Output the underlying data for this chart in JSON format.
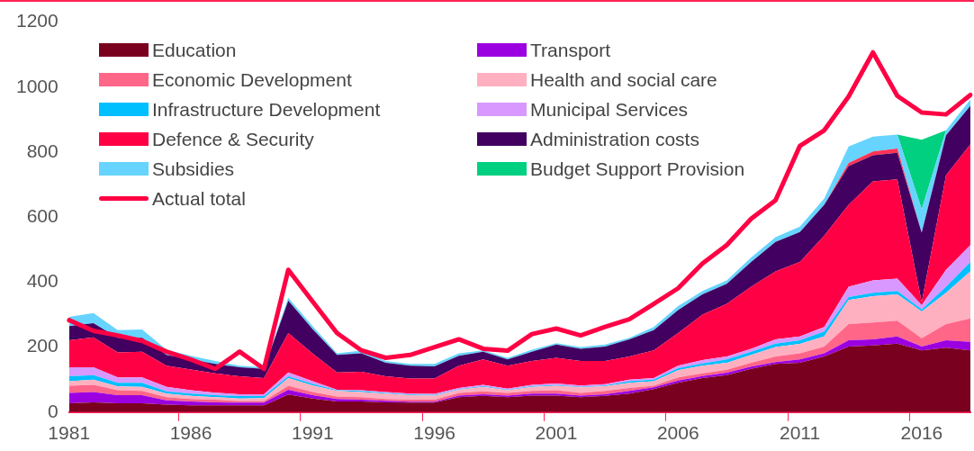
{
  "chart_data": {
    "type": "area",
    "stacked": true,
    "legend": "top left",
    "grid": false,
    "marker": "none",
    "categories": [
      "1981",
      null,
      null,
      null,
      null,
      "1986",
      null,
      null,
      null,
      null,
      "1991",
      null,
      null,
      null,
      null,
      "1996",
      null,
      null,
      null,
      null,
      "2001",
      null,
      null,
      null,
      null,
      "2006",
      null,
      null,
      null,
      null,
      "2011",
      null,
      null,
      null,
      null,
      "2016",
      null,
      null
    ],
    "ylim": [
      0,
      1200
    ],
    "yticks": [
      0,
      200,
      400,
      600,
      800,
      1000,
      1200
    ],
    "series": [
      {
        "name": "Education",
        "color": "#7a0020",
        "values": [
          27,
          30,
          27,
          27,
          23,
          21,
          21,
          21,
          21,
          54,
          42,
          33,
          33,
          30,
          29,
          29,
          46,
          50,
          46,
          51,
          51,
          46,
          50,
          57,
          71,
          90,
          105,
          114,
          133,
          148,
          152,
          171,
          202,
          205,
          211,
          190,
          198,
          190
        ]
      },
      {
        "name": "Transport",
        "color": "#9b00e0",
        "values": [
          32,
          32,
          25,
          25,
          13,
          12,
          9,
          8,
          8,
          15,
          10,
          7,
          5,
          5,
          3,
          3,
          5,
          5,
          5,
          6,
          6,
          5,
          5,
          8,
          5,
          7,
          6,
          7,
          7,
          6,
          10,
          10,
          19,
          19,
          22,
          12,
          23,
          26
        ]
      },
      {
        "name": "Economic Development",
        "color": "#ff6688",
        "values": [
          22,
          22,
          15,
          13,
          10,
          7,
          8,
          5,
          5,
          12,
          10,
          8,
          8,
          5,
          6,
          6,
          8,
          9,
          8,
          8,
          10,
          8,
          10,
          9,
          5,
          10,
          8,
          9,
          12,
          17,
          19,
          21,
          50,
          52,
          48,
          25,
          50,
          72
        ]
      },
      {
        "name": "Health and social care",
        "color": "#ffb0c0",
        "values": [
          14,
          16,
          12,
          13,
          11,
          10,
          8,
          8,
          9,
          24,
          20,
          17,
          16,
          17,
          14,
          13,
          10,
          14,
          8,
          13,
          14,
          17,
          15,
          16,
          14,
          22,
          24,
          22,
          24,
          29,
          29,
          31,
          74,
          81,
          81,
          83,
          96,
          145
        ]
      },
      {
        "name": "Infrastructure Development",
        "color": "#00bfff",
        "values": [
          15,
          14,
          11,
          12,
          7,
          7,
          6,
          7,
          6,
          5,
          5,
          2,
          3,
          2,
          2,
          2,
          1,
          2,
          2,
          2,
          2,
          2,
          2,
          5,
          5,
          6,
          7,
          10,
          10,
          11,
          11,
          15,
          9,
          10,
          11,
          6,
          19,
          29
        ]
      },
      {
        "name": "Municipal Services",
        "color": "#d898ff",
        "values": [
          28,
          24,
          17,
          17,
          14,
          10,
          8,
          6,
          6,
          12,
          8,
          2,
          2,
          3,
          3,
          3,
          4,
          4,
          3,
          4,
          5,
          4,
          4,
          5,
          5,
          8,
          10,
          9,
          9,
          13,
          12,
          14,
          32,
          38,
          38,
          13,
          52,
          52
        ]
      },
      {
        "name": "Defence & Security",
        "color": "#ff0044",
        "values": [
          83,
          92,
          77,
          79,
          65,
          64,
          59,
          55,
          50,
          121,
          85,
          53,
          57,
          48,
          46,
          47,
          69,
          78,
          71,
          73,
          79,
          75,
          71,
          71,
          85,
          100,
          140,
          162,
          191,
          209,
          229,
          281,
          252,
          305,
          305,
          9,
          291,
          310
        ]
      },
      {
        "name": "Administration costs",
        "color": "#420060",
        "values": [
          44,
          44,
          45,
          43,
          33,
          31,
          29,
          28,
          28,
          100,
          75,
          54,
          57,
          42,
          40,
          38,
          30,
          24,
          19,
          29,
          41,
          38,
          45,
          53,
          62,
          71,
          62,
          62,
          76,
          91,
          92,
          95,
          119,
          80,
          82,
          214,
          123,
          119
        ]
      },
      {
        "color": "#ff3355",
        "values": [
          0,
          0,
          0,
          0,
          0,
          0,
          0,
          0,
          0,
          0,
          0,
          0,
          0,
          0,
          0,
          0,
          0,
          0,
          0,
          0,
          0,
          0,
          0,
          0,
          0,
          0,
          0,
          0,
          0,
          0,
          0,
          0,
          10,
          12,
          13,
          0,
          0,
          0
        ]
      },
      {
        "name": "Subsidies",
        "color": "#66d4ff",
        "values": [
          28,
          31,
          23,
          25,
          16,
          11,
          9,
          5,
          5,
          9,
          10,
          5,
          8,
          5,
          5,
          7,
          8,
          4,
          5,
          6,
          4,
          5,
          6,
          5,
          10,
          12,
          11,
          10,
          14,
          14,
          17,
          19,
          50,
          46,
          43,
          72,
          15,
          19
        ]
      },
      {
        "name": "Budget Support Provision",
        "color": "#00d080",
        "values": [
          0,
          0,
          0,
          0,
          0,
          0,
          0,
          0,
          0,
          0,
          0,
          0,
          0,
          0,
          0,
          0,
          0,
          0,
          0,
          0,
          0,
          0,
          0,
          0,
          0,
          0,
          0,
          0,
          0,
          0,
          0,
          0,
          0,
          0,
          0,
          214,
          0,
          0
        ]
      },
      {
        "name": "Actual total",
        "type": "line",
        "color": "#ff0044",
        "values": [
          283,
          250,
          236,
          219,
          186,
          162,
          133,
          186,
          133,
          438,
          340,
          243,
          190,
          167,
          176,
          200,
          224,
          195,
          189,
          240,
          257,
          236,
          262,
          286,
          333,
          381,
          457,
          514,
          595,
          652,
          819,
          867,
          971,
          1107,
          973,
          922,
          916,
          976
        ]
      }
    ]
  }
}
